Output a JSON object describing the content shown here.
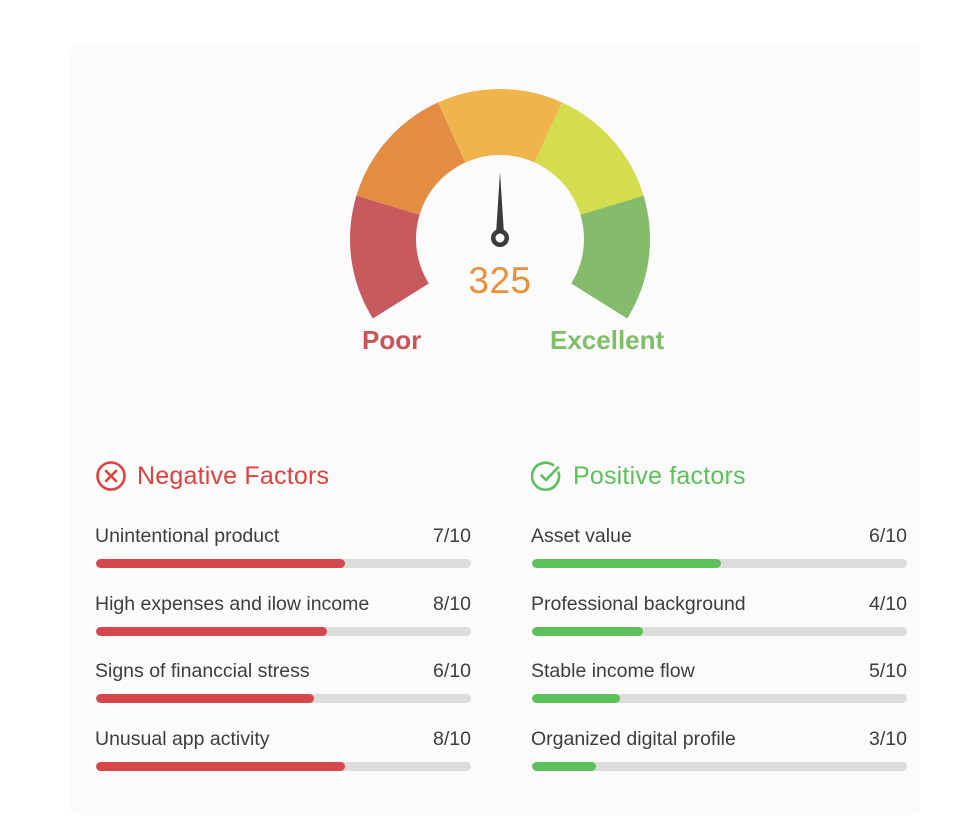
{
  "gauge": {
    "score": "325",
    "score_color": "#e8913a",
    "needle_color": "#3b3b3b",
    "min_label": "Poor",
    "max_label": "Excellent",
    "min_label_color": "#c9535a",
    "max_label_color": "#7fbf6a",
    "segments": [
      {
        "name": "poor",
        "color": "#c75a5d"
      },
      {
        "name": "fair",
        "color": "#e38d43"
      },
      {
        "name": "average",
        "color": "#efb44b"
      },
      {
        "name": "good",
        "color": "#d3dd4e"
      },
      {
        "name": "excellent",
        "color": "#84bc6b"
      }
    ]
  },
  "negative": {
    "title": "Negative Factors",
    "icon": "x-circle-icon",
    "color": "#e0413f",
    "bar_color": "#d6474b",
    "items": [
      {
        "label": "Unintentional product",
        "score": "7/10",
        "fill_pct": 66.5
      },
      {
        "label": "High expenses and ilow income",
        "score": "8/10",
        "fill_pct": 61.5
      },
      {
        "label": "Signs of financcial stress",
        "score": "6/10",
        "fill_pct": 58
      },
      {
        "label": "Unusual app activity",
        "score": "8/10",
        "fill_pct": 66.5
      }
    ]
  },
  "positive": {
    "title": "Positive factors",
    "icon": "check-circle-icon",
    "color": "#5cc15a",
    "bar_color": "#5cc15a",
    "items": [
      {
        "label": "Asset value",
        "score": "6/10",
        "fill_pct": 50.5
      },
      {
        "label": "Professional background",
        "score": "4/10",
        "fill_pct": 29.5
      },
      {
        "label": "Stable income flow",
        "score": "5/10",
        "fill_pct": 23.5
      },
      {
        "label": "Organized digital profile",
        "score": "3/10",
        "fill_pct": 17
      }
    ]
  }
}
